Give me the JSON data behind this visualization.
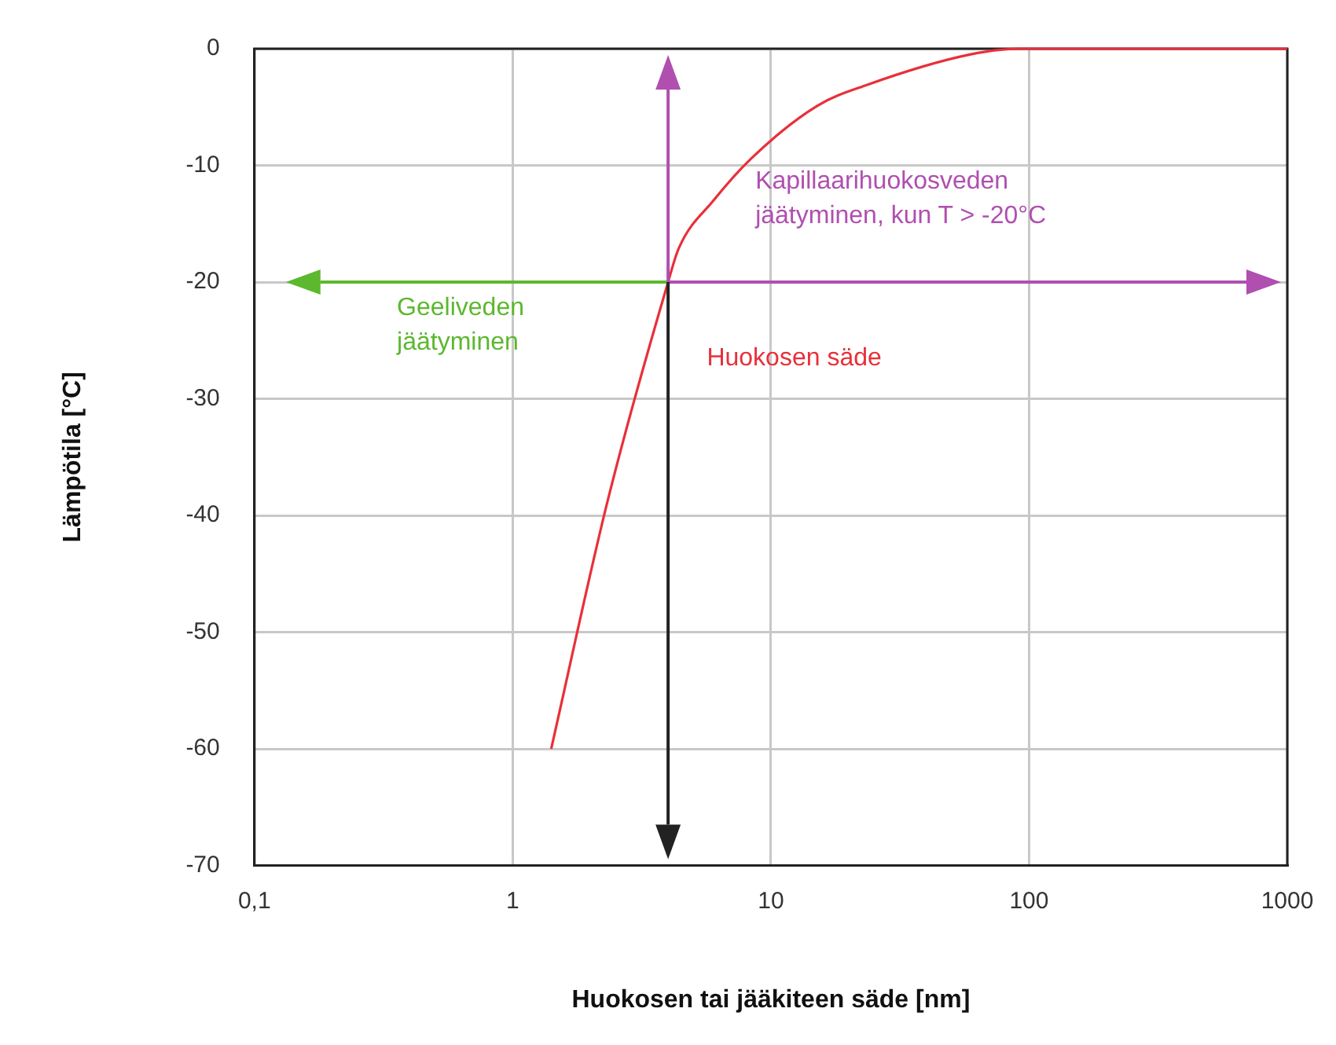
{
  "chart_data": {
    "type": "line",
    "xlabel": "Huokosen tai jääkiteen säde [nm]",
    "ylabel": "Lämpötila [°C]",
    "series": [
      {
        "color": "#e8303a",
        "x": [
          1.41,
          2.33,
          4,
          4.4,
          6,
          8.4,
          15.1,
          23.6,
          59,
          92,
          1000
        ],
        "values": [
          -60,
          -38.8,
          -20,
          -17.1,
          -13,
          -9.4,
          -4.9,
          -3.1,
          -0.5,
          0,
          0
        ]
      }
    ],
    "xlim": [
      0.1,
      1000
    ],
    "xticks": [
      {
        "value": 0.1,
        "label": "0,1"
      },
      1,
      10,
      100,
      1000
    ],
    "ylim": [
      -70,
      0
    ],
    "yticks": [
      -70,
      -60,
      -50,
      -40,
      -30,
      -20,
      -10,
      0
    ],
    "log": "x",
    "grid": true,
    "legend": false,
    "marker": "none",
    "line_style": "solid",
    "annotations": [
      "Geeliveden\njäätyminen",
      "Kapillaarihuokosveden\njäätyminen, kun T > -20°C",
      "Huokosen säde"
    ]
  }
}
